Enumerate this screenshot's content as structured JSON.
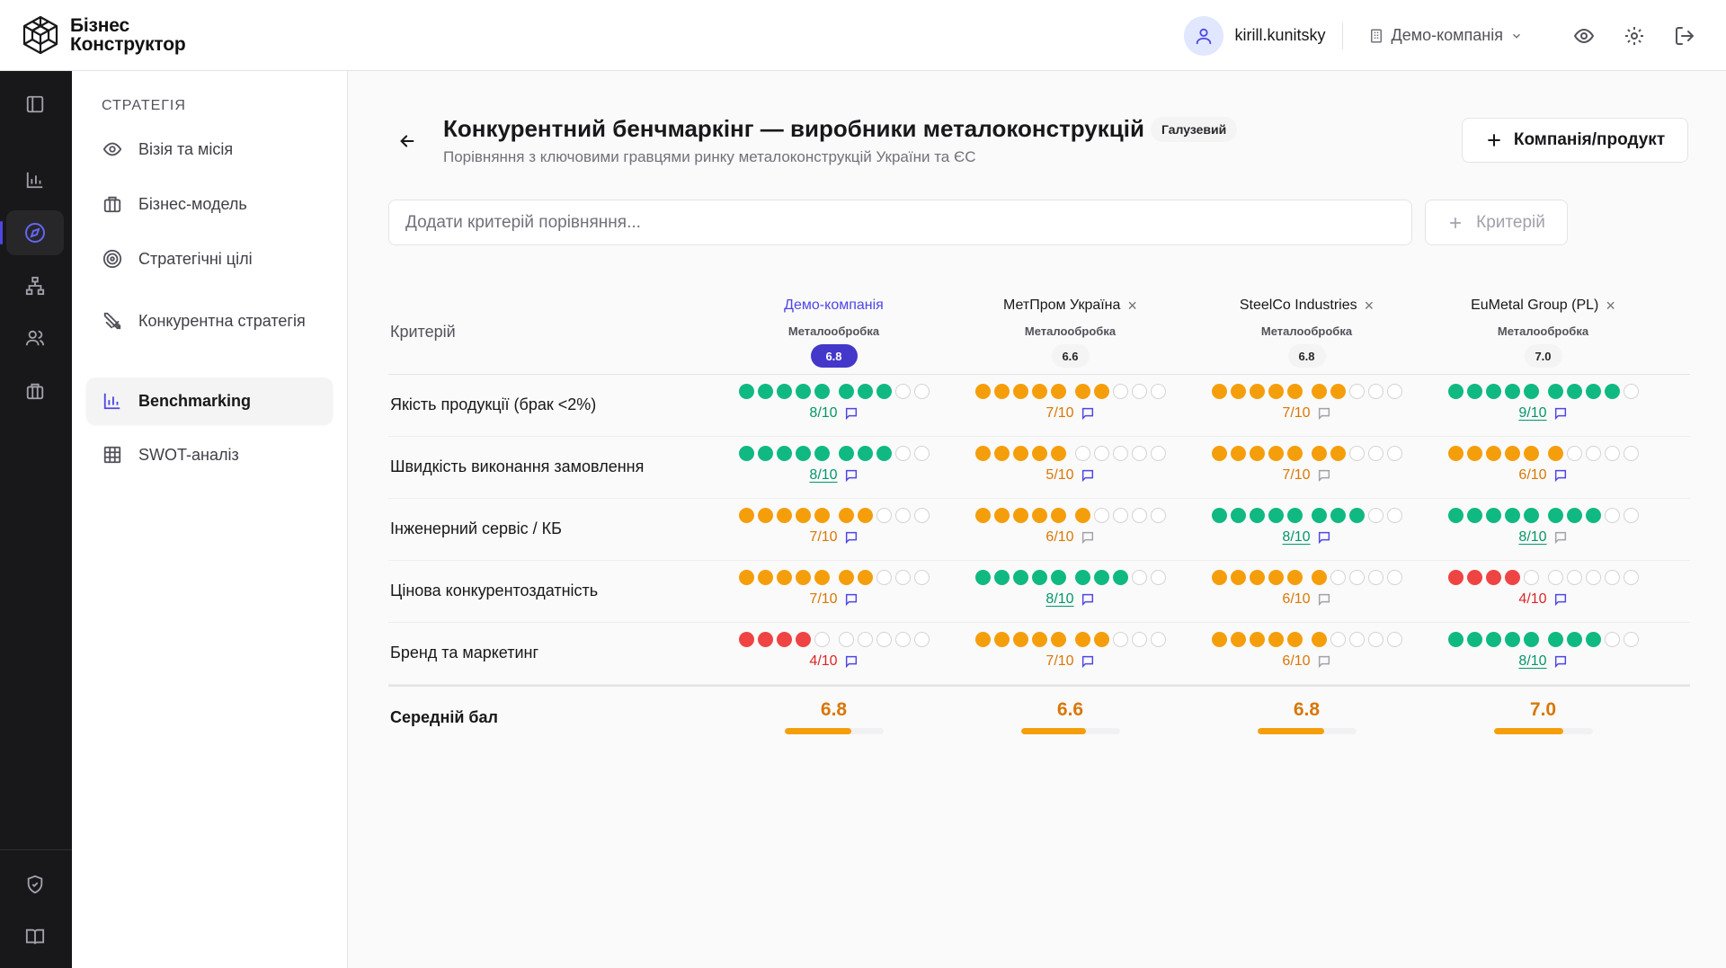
{
  "app": {
    "name_line1": "Бізнес",
    "name_line2": "Конструктор",
    "username": "kirill.kunitsky",
    "company": "Демо-компанія"
  },
  "rail": {
    "icons": [
      "panel-toggle-icon",
      "bar-chart-icon",
      "compass-icon",
      "org-chart-icon",
      "users-icon",
      "briefcase-icon",
      "shield-icon",
      "book-icon"
    ]
  },
  "sidebar": {
    "section": "СТРАТЕГІЯ",
    "items": [
      {
        "label": "Візія та місія",
        "icon": "eye-icon"
      },
      {
        "label": "Бізнес-модель",
        "icon": "briefcase-icon"
      },
      {
        "label": "Стратегічні цілі",
        "icon": "target-icon"
      },
      {
        "label": "Конкурентна стратегія",
        "icon": "swords-icon"
      },
      {
        "label": "Benchmarking",
        "icon": "bar-chart-icon",
        "active": true
      },
      {
        "label": "SWOT-аналіз",
        "icon": "grid-icon"
      }
    ]
  },
  "page": {
    "title": "Конкурентний бенчмаркінг — виробники металоконструкцій",
    "badge": "Галузевий",
    "subtitle": "Порівняння з ключовими гравцями ринку металоконструкцій України та ЄС",
    "add_company_label": "Компанія/продукт",
    "criterion_placeholder": "Додати критерій порівняння...",
    "criterion_button": "Критерій"
  },
  "table": {
    "criterion_header": "Критерій",
    "avg_label": "Середній бал",
    "companies": [
      {
        "name": "Демо-компанія",
        "industry": "Металообробка",
        "score": "6.8",
        "own": true,
        "avg": 6.8
      },
      {
        "name": "МетПром Україна",
        "industry": "Металообробка",
        "score": "6.6",
        "own": false,
        "avg": 6.6
      },
      {
        "name": "SteelCo Industries",
        "industry": "Металообробка",
        "score": "6.8",
        "own": false,
        "avg": 6.8
      },
      {
        "name": "EuMetal Group (PL)",
        "industry": "Металообробка",
        "score": "7.0",
        "own": false,
        "avg": 7.0
      }
    ],
    "rows": [
      {
        "label": "Якість продукції (брак <2%)",
        "scores": [
          {
            "v": 8,
            "txt": "8/10",
            "ul": false,
            "note": true
          },
          {
            "v": 7,
            "txt": "7/10",
            "ul": false,
            "note": true
          },
          {
            "v": 7,
            "txt": "7/10",
            "ul": false,
            "note": false
          },
          {
            "v": 9,
            "txt": "9/10",
            "ul": true,
            "note": true
          }
        ]
      },
      {
        "label": "Швидкість виконання замовлення",
        "scores": [
          {
            "v": 8,
            "txt": "8/10",
            "ul": true,
            "note": true
          },
          {
            "v": 5,
            "txt": "5/10",
            "ul": false,
            "note": true
          },
          {
            "v": 7,
            "txt": "7/10",
            "ul": false,
            "note": false
          },
          {
            "v": 6,
            "txt": "6/10",
            "ul": false,
            "note": true
          }
        ]
      },
      {
        "label": "Інженерний сервіс / КБ",
        "scores": [
          {
            "v": 7,
            "txt": "7/10",
            "ul": false,
            "note": true
          },
          {
            "v": 6,
            "txt": "6/10",
            "ul": false,
            "note": false
          },
          {
            "v": 8,
            "txt": "8/10",
            "ul": true,
            "note": true
          },
          {
            "v": 8,
            "txt": "8/10",
            "ul": true,
            "note": false
          }
        ]
      },
      {
        "label": "Цінова конкурентоздатність",
        "scores": [
          {
            "v": 7,
            "txt": "7/10",
            "ul": false,
            "note": true
          },
          {
            "v": 8,
            "txt": "8/10",
            "ul": true,
            "note": true
          },
          {
            "v": 6,
            "txt": "6/10",
            "ul": false,
            "note": false
          },
          {
            "v": 4,
            "txt": "4/10",
            "ul": false,
            "note": true
          }
        ]
      },
      {
        "label": "Бренд та маркетинг",
        "scores": [
          {
            "v": 4,
            "txt": "4/10",
            "ul": false,
            "note": true
          },
          {
            "v": 7,
            "txt": "7/10",
            "ul": false,
            "note": true
          },
          {
            "v": 6,
            "txt": "6/10",
            "ul": false,
            "note": false
          },
          {
            "v": 8,
            "txt": "8/10",
            "ul": true,
            "note": true
          }
        ]
      }
    ]
  },
  "colors": {
    "accent": "#4f46e5",
    "green": "#10b981",
    "green_text": "#059669",
    "orange": "#f59e0b",
    "orange_text": "#d97706",
    "red": "#ef4444",
    "red_text": "#dc2626",
    "rail_bg": "#18181b"
  }
}
